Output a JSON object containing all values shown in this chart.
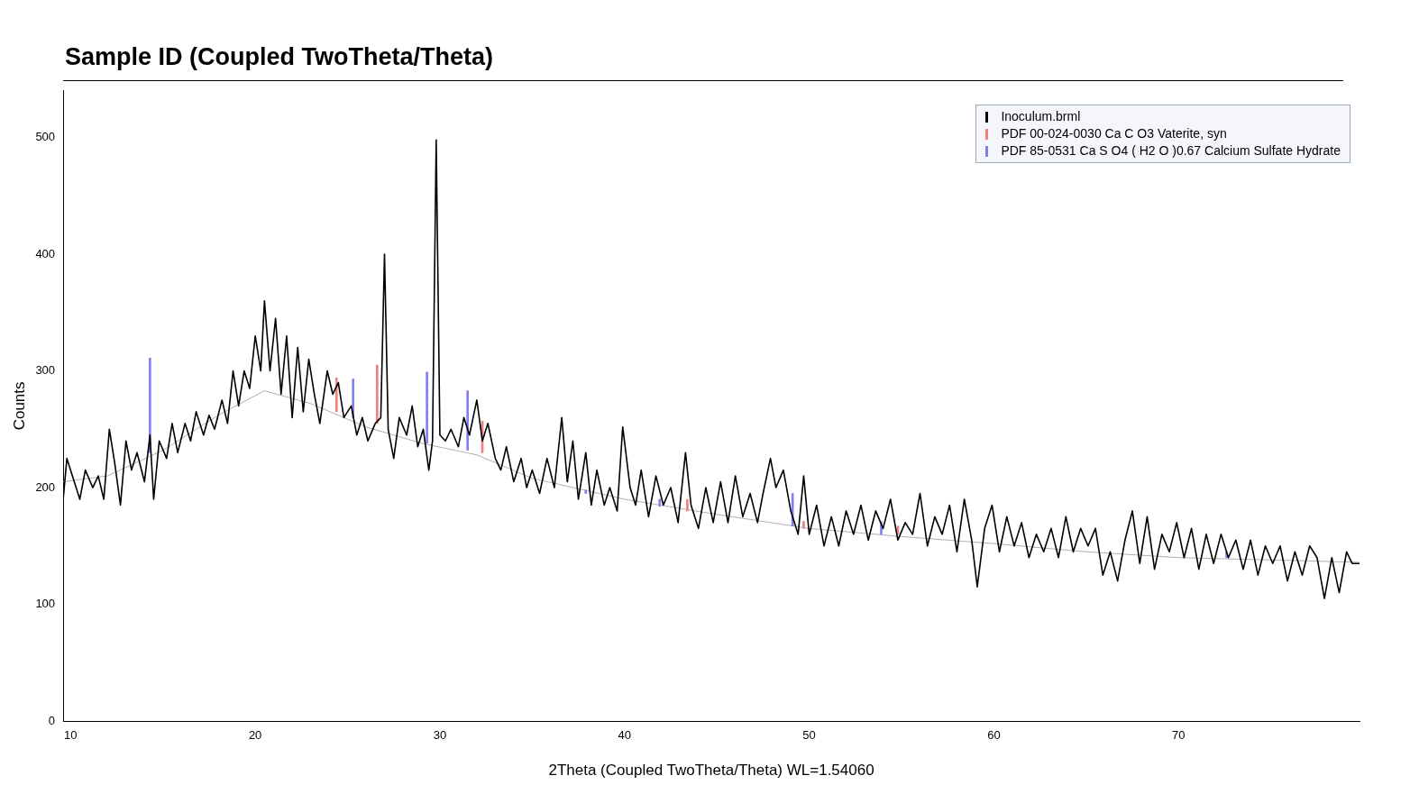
{
  "chart_data": {
    "type": "line",
    "title": "Sample ID (Coupled TwoTheta/Theta)",
    "xlabel": "2Theta (Coupled TwoTheta/Theta) WL=1.54060",
    "ylabel": "Counts",
    "xlim": [
      9.6,
      79.8
    ],
    "xticks": [
      10,
      20,
      30,
      40,
      50,
      60,
      70
    ],
    "ylim": [
      0,
      540
    ],
    "yticks": [
      0,
      100,
      200,
      300,
      400,
      500
    ],
    "grid": false,
    "legend": "top right",
    "marker": "none",
    "line_style": "solid",
    "series": [
      {
        "name": "Inoculum.brml",
        "color": "#000000",
        "x": [
          9.6,
          9.8,
          10.2,
          10.5,
          10.8,
          11.2,
          11.5,
          11.8,
          12.1,
          12.4,
          12.7,
          13,
          13.3,
          13.6,
          14,
          14.3,
          14.5,
          14.8,
          15.2,
          15.5,
          15.8,
          16.2,
          16.5,
          16.8,
          17.2,
          17.5,
          17.8,
          18.2,
          18.5,
          18.8,
          19.1,
          19.4,
          19.7,
          20,
          20.3,
          20.5,
          20.8,
          21.1,
          21.4,
          21.7,
          22,
          22.3,
          22.6,
          22.9,
          23.2,
          23.5,
          23.9,
          24.2,
          24.5,
          24.8,
          25.2,
          25.5,
          25.8,
          26.1,
          26.5,
          26.8,
          27,
          27.2,
          27.5,
          27.8,
          28.2,
          28.5,
          28.8,
          29.1,
          29.4,
          29.6,
          29.8,
          30,
          30.3,
          30.6,
          31,
          31.3,
          31.6,
          32,
          32.3,
          32.6,
          33,
          33.3,
          33.6,
          34,
          34.4,
          34.7,
          35,
          35.4,
          35.8,
          36.2,
          36.6,
          36.9,
          37.2,
          37.5,
          37.9,
          38.2,
          38.5,
          38.9,
          39.2,
          39.6,
          39.9,
          40.3,
          40.6,
          40.9,
          41.3,
          41.7,
          42.1,
          42.5,
          42.9,
          43.3,
          43.6,
          44,
          44.4,
          44.8,
          45.2,
          45.6,
          46,
          46.4,
          46.8,
          47.2,
          47.5,
          47.9,
          48.2,
          48.6,
          49,
          49.4,
          49.7,
          50,
          50.4,
          50.8,
          51.2,
          51.6,
          52,
          52.4,
          52.8,
          53.2,
          53.6,
          54,
          54.4,
          54.8,
          55.2,
          55.6,
          56,
          56.4,
          56.8,
          57.2,
          57.6,
          58,
          58.4,
          58.8,
          59.1,
          59.5,
          59.9,
          60.3,
          60.7,
          61.1,
          61.5,
          61.9,
          62.3,
          62.7,
          63.1,
          63.5,
          63.9,
          64.3,
          64.7,
          65.1,
          65.5,
          65.9,
          66.3,
          66.7,
          67.1,
          67.5,
          67.9,
          68.3,
          68.7,
          69.1,
          69.5,
          69.9,
          70.3,
          70.7,
          71.1,
          71.5,
          71.9,
          72.3,
          72.7,
          73.1,
          73.5,
          73.9,
          74.3,
          74.7,
          75.1,
          75.5,
          75.9,
          76.3,
          76.7,
          77.1,
          77.5,
          77.9,
          78.3,
          78.7,
          79.1,
          79.4,
          79.8
        ],
        "values": [
          190,
          225,
          205,
          190,
          215,
          200,
          210,
          190,
          250,
          220,
          185,
          240,
          215,
          230,
          205,
          245,
          190,
          240,
          225,
          255,
          230,
          255,
          240,
          265,
          245,
          262,
          250,
          275,
          255,
          300,
          270,
          300,
          285,
          330,
          300,
          360,
          300,
          345,
          280,
          330,
          260,
          320,
          265,
          310,
          280,
          255,
          300,
          280,
          290,
          260,
          270,
          245,
          260,
          240,
          255,
          260,
          400,
          250,
          225,
          260,
          245,
          270,
          235,
          250,
          215,
          240,
          498,
          245,
          240,
          250,
          235,
          260,
          245,
          275,
          240,
          255,
          225,
          215,
          235,
          205,
          225,
          200,
          215,
          195,
          225,
          200,
          260,
          205,
          240,
          190,
          230,
          185,
          215,
          185,
          200,
          180,
          252,
          200,
          185,
          215,
          175,
          210,
          185,
          200,
          170,
          230,
          185,
          165,
          200,
          170,
          205,
          170,
          210,
          175,
          195,
          170,
          195,
          225,
          200,
          215,
          180,
          160,
          210,
          160,
          185,
          150,
          175,
          150,
          180,
          160,
          185,
          155,
          180,
          165,
          190,
          155,
          170,
          160,
          195,
          150,
          175,
          160,
          185,
          145,
          190,
          155,
          115,
          165,
          185,
          145,
          175,
          150,
          170,
          140,
          160,
          145,
          165,
          140,
          175,
          145,
          165,
          150,
          165,
          125,
          145,
          120,
          155,
          180,
          135,
          175,
          130,
          160,
          145,
          170,
          140,
          165,
          130,
          160,
          135,
          160,
          140,
          155,
          130,
          155,
          125,
          150,
          135,
          150,
          120,
          145,
          125,
          150,
          140,
          105,
          140,
          110,
          145,
          135,
          135
        ]
      },
      {
        "name": "PDF 00-024-0030 Ca C O3 Vaterite, syn",
        "color": "#f08080",
        "type": "bar",
        "x": [
          24.4,
          26.6,
          32.3,
          43.4,
          49.7,
          54.8
        ],
        "base": [
          265,
          255,
          230,
          180,
          165,
          160
        ],
        "values": [
          29,
          50,
          27,
          10,
          6,
          7
        ]
      },
      {
        "name": "PDF 85-0531 Ca S O4 ( H2 O )0.67 Calcium Sulfate Hydrate",
        "color": "#8080f0",
        "type": "bar",
        "x": [
          14.3,
          25.3,
          29.3,
          31.5,
          37.9,
          41.9,
          49.1,
          53.9,
          72.6
        ],
        "base": [
          230,
          260,
          238,
          232,
          195,
          184,
          167,
          160,
          140
        ],
        "values": [
          81,
          33,
          61,
          51,
          3,
          6,
          28,
          11,
          5
        ]
      },
      {
        "color": "#b0b0b0",
        "x": [
          9.6,
          12,
          15,
          18,
          20.5,
          23,
          26,
          29,
          32,
          35,
          40,
          45,
          50,
          55,
          60,
          65,
          70,
          75,
          79.8
        ],
        "values": [
          205,
          210,
          232,
          262,
          283,
          272,
          252,
          238,
          228,
          208,
          190,
          177,
          165,
          158,
          152,
          145,
          140,
          138,
          136
        ]
      }
    ]
  }
}
